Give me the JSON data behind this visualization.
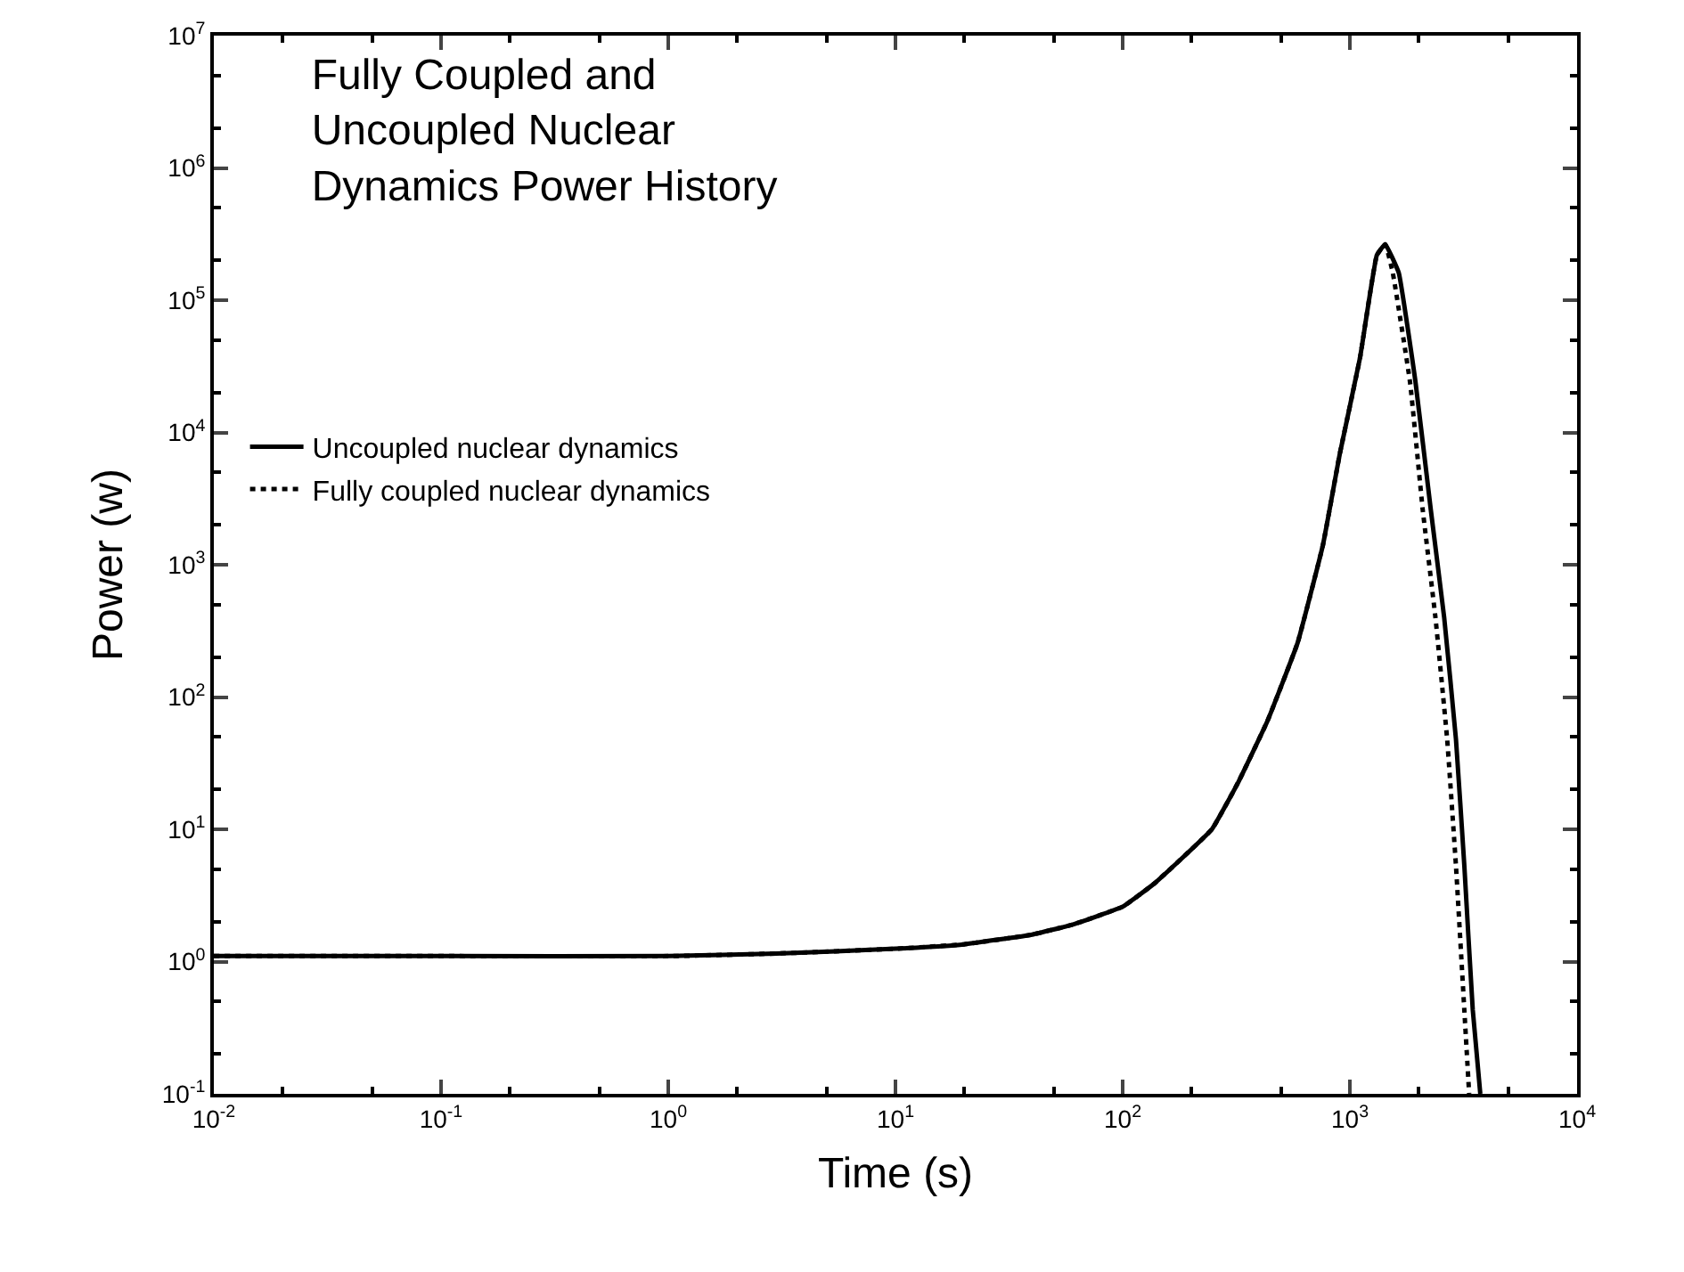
{
  "chart_data": {
    "type": "line",
    "title": "Fully Coupled and\nUncoupled Nuclear\nDynamics Power History",
    "xlabel": "Time (s)",
    "ylabel": "Power (w)",
    "log": "xy",
    "grid": false,
    "legend": "top left",
    "marker": "none",
    "xlim": [
      0.01,
      10000
    ],
    "ylim": [
      0.1,
      10000000
    ],
    "xticks": [
      {
        "value": 0.01,
        "label": "10$^{-2}$"
      },
      {
        "value": 0.1,
        "label": "10$^{-1}$"
      },
      {
        "value": 1,
        "label": "10$^{0}$"
      },
      {
        "value": 10,
        "label": "10$^{1}$"
      },
      {
        "value": 100,
        "label": "10$^{2}$"
      },
      {
        "value": 1000,
        "label": "10$^{3}$"
      },
      {
        "value": 10000,
        "label": "10$^{4}$"
      }
    ],
    "yticks": [
      {
        "value": 0.1,
        "label": "10$^{-1}$"
      },
      {
        "value": 1,
        "label": "10$^{0}$"
      },
      {
        "value": 10,
        "label": "10$^{1}$"
      },
      {
        "value": 100,
        "label": "10$^{2}$"
      },
      {
        "value": 1000,
        "label": "10$^{3}$"
      },
      {
        "value": 10000,
        "label": "10$^{4}$"
      },
      {
        "value": 100000,
        "label": "10$^{5}$"
      },
      {
        "value": 1000000,
        "label": "10$^{6}$"
      },
      {
        "value": 10000000,
        "label": "10$^{7}$"
      }
    ],
    "series": [
      {
        "name": "Uncoupled nuclear dynamics",
        "color": "#000000",
        "line_style": "solid",
        "x": [
          0.01,
          0.1,
          1,
          3,
          10,
          20,
          40,
          60,
          100,
          138,
          247,
          324,
          434,
          589,
          761,
          903,
          1107,
          1314,
          1431,
          1641,
          1945,
          2268,
          2600,
          2930,
          3190,
          3475,
          3750
        ],
        "values": [
          1.1,
          1.1,
          1.1,
          1.15,
          1.25,
          1.35,
          1.6,
          1.9,
          2.6,
          3.9,
          10,
          23,
          66,
          257,
          1410,
          6900,
          36300,
          219000,
          265000,
          161000,
          24000,
          2650,
          400,
          48,
          5.3,
          0.43,
          0.1
        ]
      },
      {
        "name": "Fully coupled nuclear dynamics",
        "color": "#000000",
        "line_style": "dotted",
        "x": [
          0.01,
          0.1,
          1,
          3,
          10,
          20,
          40,
          60,
          100,
          138,
          247,
          324,
          434,
          589,
          761,
          903,
          1107,
          1314,
          1431,
          1545,
          1840,
          2090,
          2380,
          2680,
          2930,
          3190,
          3350
        ],
        "values": [
          1.1,
          1.1,
          1.1,
          1.15,
          1.25,
          1.35,
          1.6,
          1.9,
          2.6,
          3.9,
          10,
          23,
          66,
          257,
          1410,
          6900,
          36300,
          219000,
          265000,
          161000,
          24000,
          2650,
          400,
          48,
          5.3,
          0.43,
          0.1
        ]
      }
    ]
  }
}
